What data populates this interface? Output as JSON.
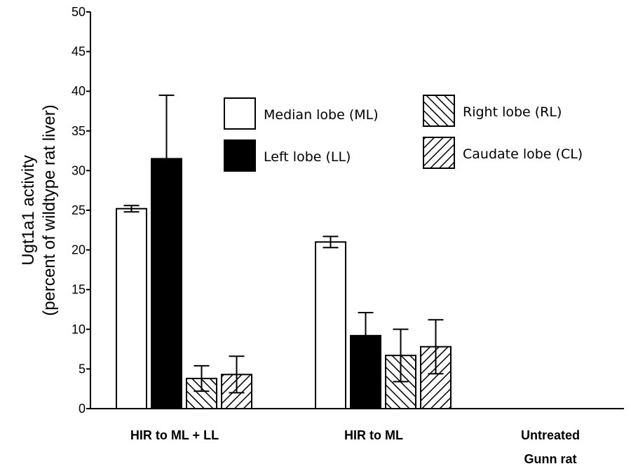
{
  "chart_data": {
    "type": "bar",
    "title": "",
    "ylabel": "Ugt1a1 activity",
    "ylabel_sub": "(percent of wildtype rat liver)",
    "ylim": [
      0,
      50
    ],
    "yticks": [
      0,
      5,
      10,
      15,
      20,
      25,
      30,
      35,
      40,
      45,
      50
    ],
    "categories": [
      {
        "lines": [
          "HIR to ML + LL"
        ]
      },
      {
        "lines": [
          "HIR to ML"
        ]
      },
      {
        "lines": [
          "Untreated",
          "Gunn rat"
        ]
      }
    ],
    "legend_position": "top-right",
    "series": [
      {
        "name": "Median lobe (ML)",
        "fill": "white",
        "values": [
          25.2,
          21.0,
          0
        ],
        "errors": [
          0.4,
          0.7,
          0
        ]
      },
      {
        "name": "Left lobe (LL)",
        "fill": "black",
        "values": [
          31.5,
          9.2,
          0
        ],
        "errors": [
          8.0,
          2.9,
          0
        ]
      },
      {
        "name": "Right lobe (RL)",
        "fill": "hatch-back",
        "values": [
          3.8,
          6.7,
          0
        ],
        "errors": [
          1.6,
          3.3,
          0
        ]
      },
      {
        "name": "Caudate lobe (CL)",
        "fill": "hatch-forward",
        "values": [
          4.3,
          7.8,
          0
        ],
        "errors": [
          2.3,
          3.4,
          0
        ]
      }
    ]
  }
}
